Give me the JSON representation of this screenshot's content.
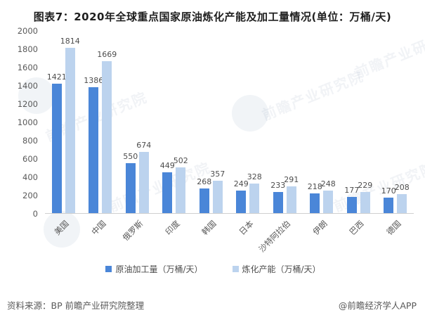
{
  "title": "图表7：2020年全球重点国家原油炼化产能及加工量情况(单位：万桶/天)",
  "chart_data": {
    "type": "bar",
    "categories": [
      "美国",
      "中国",
      "俄罗斯",
      "印度",
      "韩国",
      "日本",
      "沙特阿拉伯",
      "伊朗",
      "巴西",
      "德国"
    ],
    "series": [
      {
        "name": "原油加工量（万桶/天）",
        "color": "#4a86d8",
        "values": [
          1421,
          1386,
          550,
          449,
          268,
          249,
          233,
          218,
          177,
          170
        ]
      },
      {
        "name": "炼化产能（万桶/天）",
        "color": "#bcd3ee",
        "values": [
          1814,
          1669,
          674,
          502,
          357,
          328,
          291,
          248,
          229,
          208
        ]
      }
    ],
    "title": "图表7：2020年全球重点国家原油炼化产能及加工量情况",
    "xlabel": "",
    "ylabel": "",
    "unit": "万桶/天",
    "ylim": [
      0,
      2000
    ],
    "ytick_step": 200,
    "grid": false,
    "legend_position": "bottom",
    "bar_label_color": "#4d4d4d",
    "axis_label_color": "#595959"
  },
  "footer": {
    "source": "资料来源：BP 前瞻产业研究院整理",
    "credit": "@前瞻经济学人APP"
  },
  "watermark": {
    "text": "前瞻产业研究院",
    "logo": "qianzhan-circle-logo"
  }
}
